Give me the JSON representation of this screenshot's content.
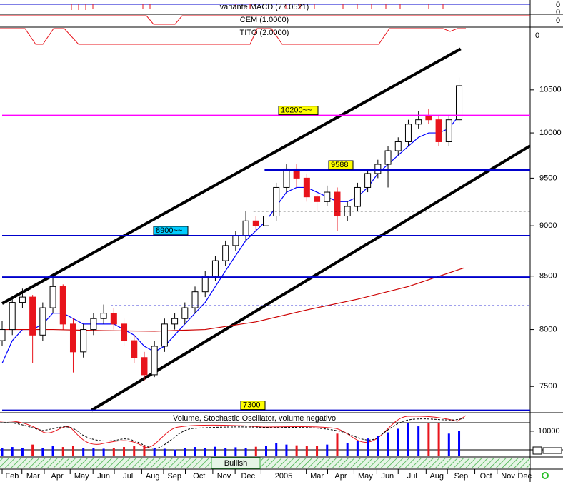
{
  "chart_data": {
    "type": "candlestick",
    "log_scale": true,
    "panels": [
      {
        "title": "variante MACD (77.0521)",
        "ticks": [
          0
        ]
      },
      {
        "title": "CEM (1.0000)",
        "ticks": [
          0,
          0
        ]
      },
      {
        "title": "TITO (2.0000)",
        "ticks": [
          0
        ]
      }
    ],
    "x": [
      0,
      2,
      4,
      6,
      8,
      10,
      12,
      14,
      16,
      18,
      20,
      22,
      24,
      26,
      28,
      30,
      32,
      34,
      36,
      38,
      40,
      42,
      44,
      46,
      48,
      50,
      52,
      54,
      56,
      58,
      60,
      62,
      64,
      66,
      68,
      70,
      72,
      74,
      76,
      78,
      80,
      82,
      84,
      86,
      88,
      90
    ],
    "xlim": [
      0,
      104
    ],
    "xticks": [
      {
        "value": 0,
        "label": "Feb"
      },
      {
        "value": 3.9,
        "label": "Mar"
      },
      {
        "value": 8.3,
        "label": "Apr"
      },
      {
        "value": 13.4,
        "label": "May"
      },
      {
        "value": 17.9,
        "label": "Jun"
      },
      {
        "value": 22.1,
        "label": "Jul"
      },
      {
        "value": 27.5,
        "label": "Aug"
      },
      {
        "value": 31.8,
        "label": "Sep"
      },
      {
        "value": 36.1,
        "label": "Oct"
      },
      {
        "value": 41.5,
        "label": "Nov"
      },
      {
        "value": 45.9,
        "label": "Dec"
      },
      {
        "value": 51,
        "label": "2005"
      },
      {
        "value": 59.9,
        "label": "Mar"
      },
      {
        "value": 64.1,
        "label": "Apr"
      },
      {
        "value": 69.3,
        "label": "May"
      },
      {
        "value": 73.8,
        "label": "Jun"
      },
      {
        "value": 78,
        "label": "Jul"
      },
      {
        "value": 83.5,
        "label": "Aug"
      },
      {
        "value": 87.7,
        "label": "Sep"
      },
      {
        "value": 93.1,
        "label": "Oct"
      },
      {
        "value": 97.5,
        "label": "Nov"
      },
      {
        "value": 101.8,
        "label": "Dec"
      }
    ],
    "candles": [
      [
        7900,
        8080,
        7850,
        8000
      ],
      [
        8000,
        8300,
        7950,
        8250
      ],
      [
        8250,
        8380,
        8200,
        8300
      ],
      [
        8300,
        8320,
        7700,
        7950
      ],
      [
        7950,
        8250,
        7900,
        8200
      ],
      [
        8200,
        8480,
        8150,
        8400
      ],
      [
        8400,
        8420,
        8000,
        8050
      ],
      [
        8050,
        8100,
        7620,
        7800
      ],
      [
        7800,
        8050,
        7750,
        8000
      ],
      [
        8000,
        8150,
        7950,
        8100
      ],
      [
        8100,
        8230,
        8050,
        8150
      ],
      [
        8150,
        8200,
        8000,
        8050
      ],
      [
        8050,
        8100,
        7850,
        7900
      ],
      [
        7900,
        7950,
        7700,
        7750
      ],
      [
        7750,
        7800,
        7550,
        7600
      ],
      [
        7600,
        7900,
        7580,
        7850
      ],
      [
        7850,
        8100,
        7800,
        8050
      ],
      [
        8050,
        8150,
        8000,
        8100
      ],
      [
        8100,
        8250,
        8050,
        8200
      ],
      [
        8200,
        8400,
        8150,
        8350
      ],
      [
        8350,
        8550,
        8300,
        8500
      ],
      [
        8500,
        8700,
        8450,
        8650
      ],
      [
        8650,
        8850,
        8600,
        8800
      ],
      [
        8800,
        8950,
        8750,
        8900
      ],
      [
        8900,
        9150,
        8850,
        9050
      ],
      [
        9050,
        9100,
        8950,
        9000
      ],
      [
        9000,
        9150,
        8950,
        9100
      ],
      [
        9100,
        9450,
        9050,
        9400
      ],
      [
        9400,
        9650,
        9350,
        9600
      ],
      [
        9600,
        9650,
        9400,
        9500
      ],
      [
        9500,
        9550,
        9250,
        9300
      ],
      [
        9300,
        9350,
        9150,
        9250
      ],
      [
        9250,
        9420,
        9200,
        9350
      ],
      [
        9350,
        9400,
        8950,
        9100
      ],
      [
        9100,
        9250,
        9050,
        9200
      ],
      [
        9200,
        9450,
        9150,
        9400
      ],
      [
        9400,
        9600,
        9350,
        9550
      ],
      [
        9550,
        9700,
        9500,
        9650
      ],
      [
        9650,
        9850,
        9400,
        9800
      ],
      [
        9800,
        9950,
        9750,
        9900
      ],
      [
        9900,
        10150,
        9850,
        10100
      ],
      [
        10100,
        10250,
        10050,
        10150
      ],
      [
        10200,
        10280,
        10100,
        10150
      ],
      [
        10150,
        10200,
        9850,
        9900
      ],
      [
        9900,
        10200,
        9850,
        10150
      ],
      [
        10150,
        10650,
        10100,
        10550
      ]
    ],
    "up_color": "#ffffff",
    "down_color": "#e8141c",
    "ylim": [
      7280,
      11120
    ],
    "yticks": [
      7500,
      8000,
      8500,
      9000,
      9500,
      10000,
      10500
    ],
    "moving_averages": [
      {
        "color": "#0000ff",
        "x": [
          0,
          2,
          4,
          6,
          8,
          10,
          12,
          14,
          16,
          18,
          20,
          22,
          24,
          26,
          28,
          30,
          32,
          34,
          36,
          38,
          40,
          42,
          44,
          46,
          48,
          50,
          52,
          54,
          56,
          58,
          60,
          62,
          64,
          66,
          68,
          70,
          72,
          74,
          76,
          78,
          80,
          82,
          84,
          86,
          88,
          90
        ],
        "values": [
          7700,
          7900,
          8000,
          8000,
          8050,
          8150,
          8150,
          8100,
          8050,
          8050,
          8050,
          8050,
          8000,
          7950,
          7850,
          7800,
          7850,
          7950,
          8050,
          8150,
          8250,
          8400,
          8550,
          8700,
          8850,
          8950,
          9050,
          9200,
          9350,
          9400,
          9400,
          9350,
          9300,
          9250,
          9250,
          9300,
          9400,
          9550,
          9650,
          9750,
          9850,
          9950,
          10000,
          10000,
          10050,
          10200
        ]
      },
      {
        "color": "#cc0000",
        "x": [
          0,
          10,
          20,
          30,
          40,
          50,
          60,
          70,
          80,
          91
        ],
        "values": [
          8000,
          8000,
          7990,
          7985,
          8000,
          8070,
          8180,
          8280,
          8400,
          8580
        ]
      }
    ],
    "trendlines": [
      {
        "color": "#000000",
        "x": [
          0,
          90.3
        ],
        "values": [
          8240,
          11000
        ]
      },
      {
        "color": "#000000",
        "x": [
          17.6,
          104
        ],
        "values": [
          7300,
          9855
        ]
      }
    ],
    "levels": [
      {
        "value": 10200,
        "color": "#ff00ff",
        "label": "10200~~",
        "start": 0,
        "label_bg": "#ffff00"
      },
      {
        "value": 9588,
        "color": "#0000cc",
        "label": "9588",
        "start": 51.7,
        "label_bg": "#ffff00"
      },
      {
        "value": 8900,
        "color": "#0000cc",
        "label": "8900~~",
        "start": 0,
        "label_bg": "#00ccff"
      },
      {
        "value": 8490,
        "color": "#0000cc",
        "start": 0
      },
      {
        "value": 9150,
        "color": "#000000",
        "start": 49.5,
        "dash": true
      },
      {
        "value": 8220,
        "color": "#0000cc",
        "start": 21.4,
        "dash": true
      },
      {
        "value": 7300,
        "color": "#0000cc",
        "label": "7300",
        "start": 0,
        "label_bg": "#ffff00"
      }
    ],
    "volume": {
      "title": "Volume, Stochastic Oscillator, volume negativo",
      "values": [
        3000,
        3500,
        3200,
        4500,
        3000,
        3800,
        3500,
        4000,
        3000,
        3200,
        2800,
        3000,
        3500,
        3800,
        4200,
        3000,
        2800,
        2500,
        3000,
        3500,
        3200,
        3600,
        3000,
        3400,
        3000,
        3600,
        4000,
        5000,
        4500,
        4200,
        3800,
        4000,
        4500,
        9000,
        5000,
        6000,
        7000,
        8000,
        9500,
        11000,
        16000,
        12000,
        15000,
        17000,
        9000,
        10000
      ],
      "ylim": [
        0,
        17000
      ],
      "yticks": [
        10000
      ],
      "up_color": "#0000ff",
      "down_color": "#e8141c"
    },
    "signal": "Bullish"
  }
}
